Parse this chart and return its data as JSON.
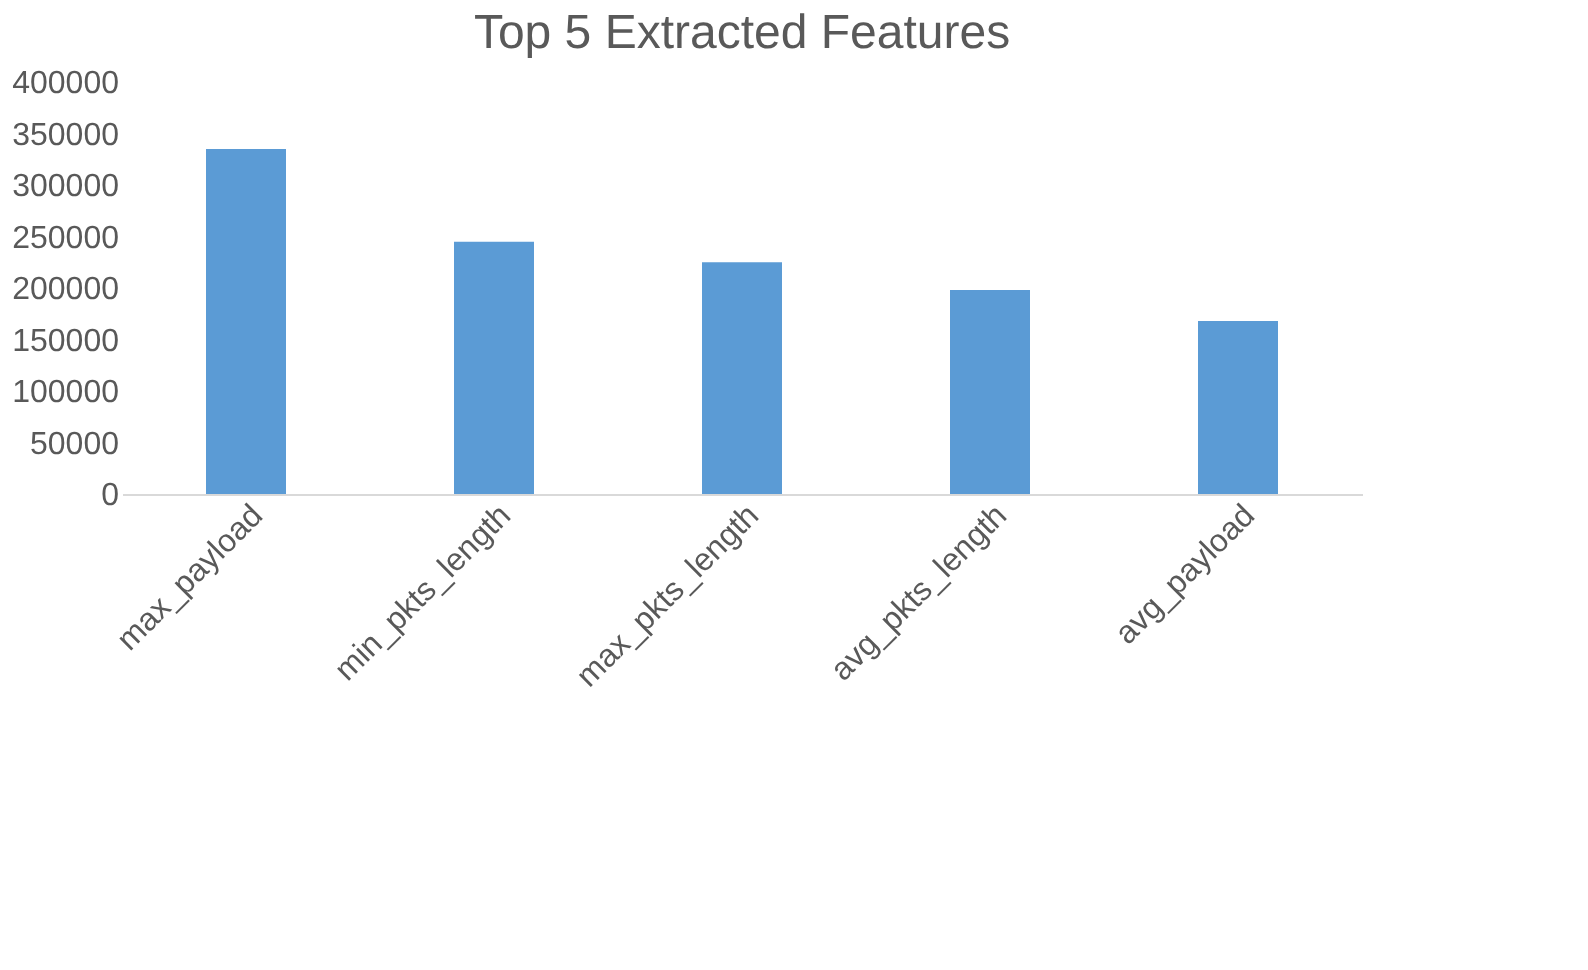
{
  "chart_data": {
    "type": "bar",
    "title": "Top 5 Extracted Features",
    "categories": [
      "max_payload",
      "min_pkts_length",
      "max_pkts_length",
      "avg_pkts_length",
      "avg_payload"
    ],
    "values": [
      335000,
      245000,
      225000,
      198000,
      168000
    ],
    "color": "#5b9bd5",
    "ylim": [
      0,
      400000
    ],
    "yticks": [
      0,
      50000,
      100000,
      150000,
      200000,
      250000,
      300000,
      350000,
      400000
    ],
    "grid": false
  }
}
